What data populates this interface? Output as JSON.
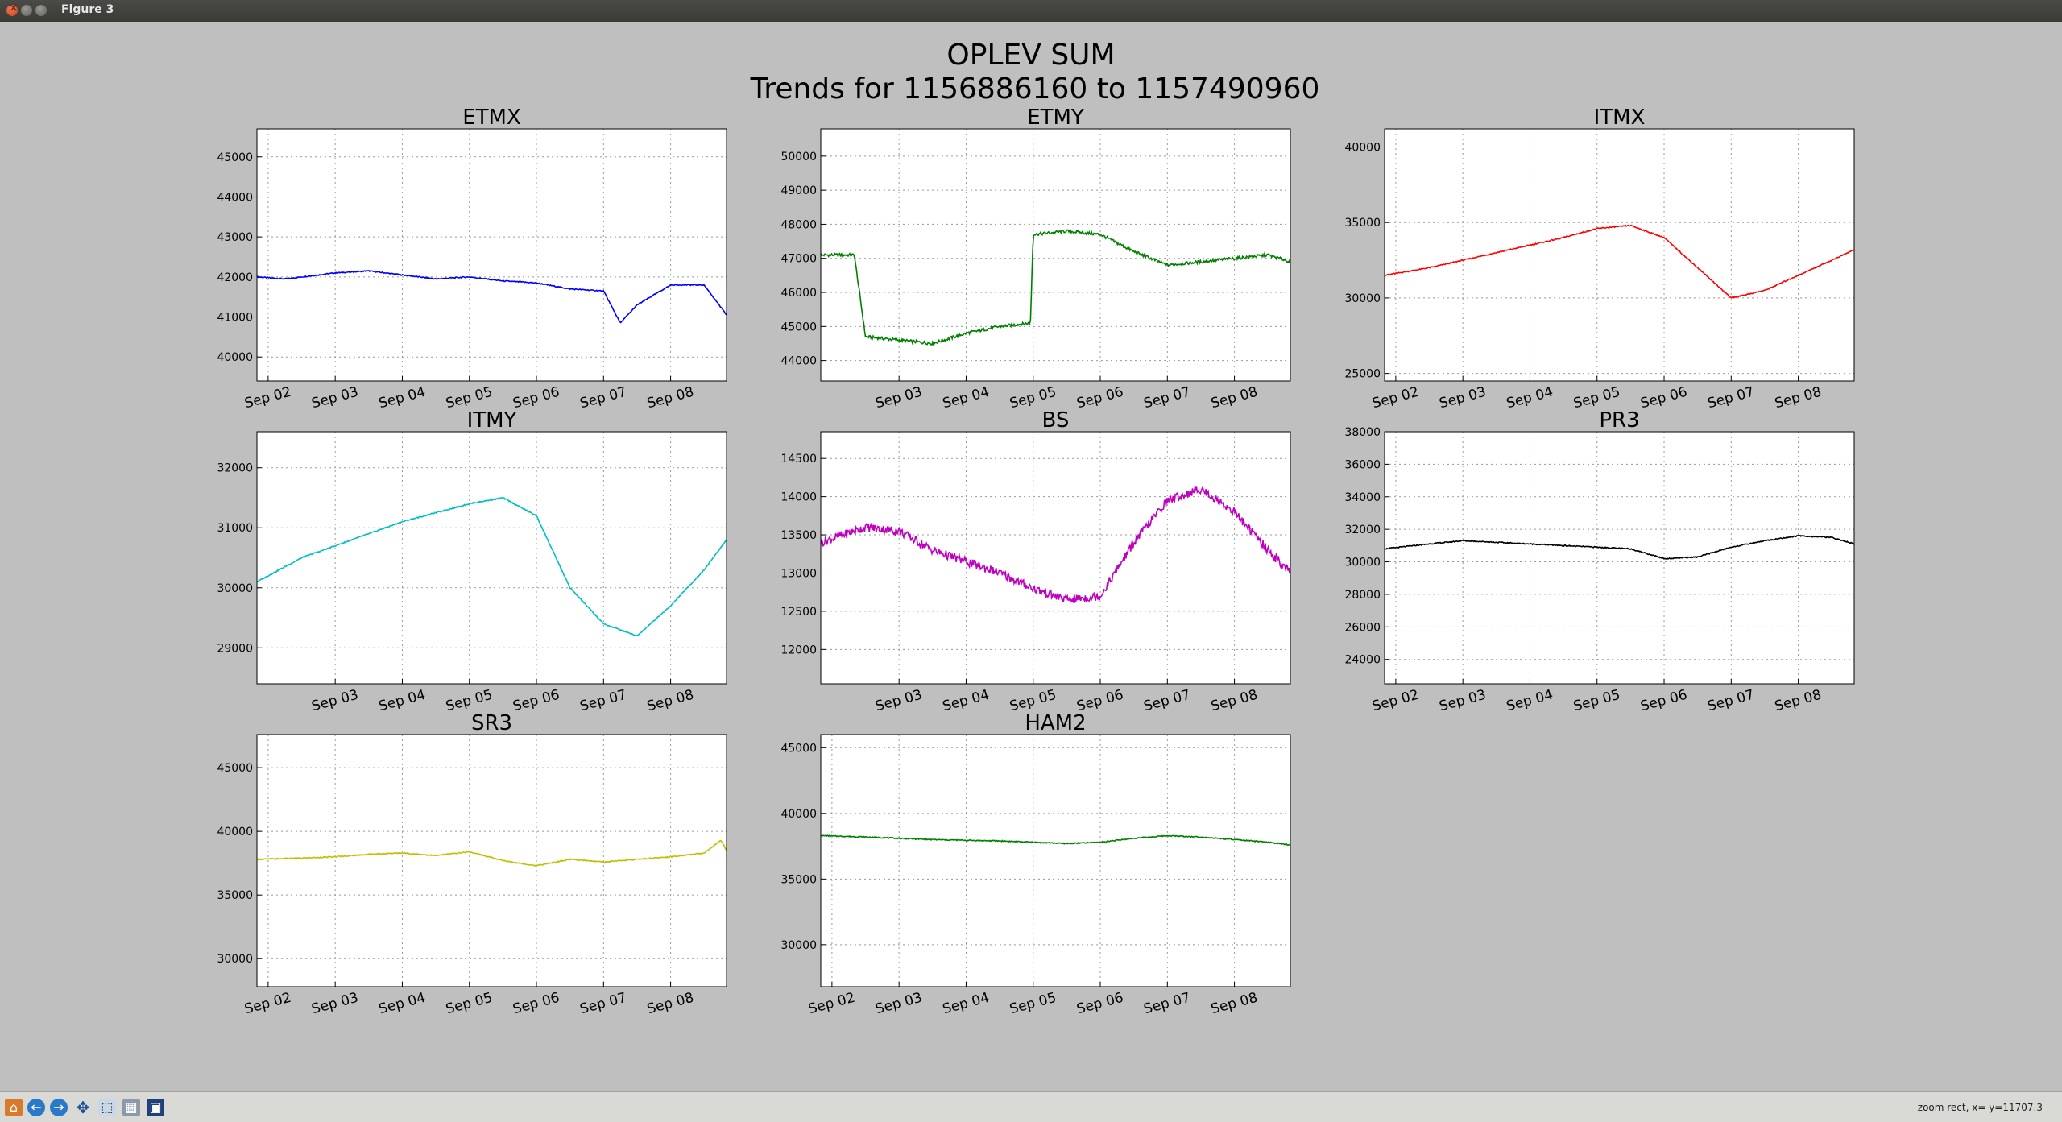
{
  "window": {
    "title": "Figure 3"
  },
  "figure": {
    "suptitle_line1": "OPLEV SUM",
    "suptitle_line2": "Trends for 1156886160 to 1157490960"
  },
  "toolbar": {
    "buttons": [
      "home-icon",
      "back-icon",
      "forward-icon",
      "pan-icon",
      "zoom-icon",
      "configure-subplots-icon",
      "save-icon"
    ],
    "status": "zoom rect, x= y=11707.3"
  },
  "chart_data": [
    {
      "type": "line",
      "title": "ETMX",
      "color": "#0000ff",
      "xlim": [
        "Sep 01 20:00",
        "Sep 08 20:00"
      ],
      "ylim": [
        39400,
        45700
      ],
      "yticks": [
        40000,
        41000,
        42000,
        43000,
        44000,
        45000
      ],
      "xticks": [
        "Sep 02",
        "Sep 03",
        "Sep 04",
        "Sep 05",
        "Sep 06",
        "Sep 07",
        "Sep 08"
      ],
      "grid": true,
      "x": [
        "Sep 01 20:00",
        "Sep 02 06:00",
        "Sep 02 12:00",
        "Sep 03 00:00",
        "Sep 03 12:00",
        "Sep 04 00:00",
        "Sep 04 12:00",
        "Sep 05 00:00",
        "Sep 05 12:00",
        "Sep 06 00:00",
        "Sep 06 12:00",
        "Sep 07 00:00",
        "Sep 07 06:00",
        "Sep 07 12:00",
        "Sep 08 00:00",
        "Sep 08 12:00",
        "Sep 08 20:00"
      ],
      "y": [
        42000,
        41950,
        42000,
        42100,
        42150,
        42050,
        41950,
        42000,
        41900,
        41850,
        41700,
        41650,
        40850,
        41300,
        41800,
        41800,
        41050
      ]
    },
    {
      "type": "line",
      "title": "ETMY",
      "color": "#008000",
      "xlim": [
        "Sep 01 20:00",
        "Sep 08 20:00"
      ],
      "ylim": [
        43400,
        50800
      ],
      "yticks": [
        44000,
        45000,
        46000,
        47000,
        48000,
        49000,
        50000
      ],
      "xticks": [
        "Sep 03",
        "Sep 04",
        "Sep 05",
        "Sep 06",
        "Sep 07",
        "Sep 08"
      ],
      "grid": true,
      "x": [
        "Sep 01 20:00",
        "Sep 02 08:00",
        "Sep 02 12:00",
        "Sep 03 00:00",
        "Sep 03 12:00",
        "Sep 04 00:00",
        "Sep 04 12:00",
        "Sep 04 23:00",
        "Sep 05 00:00",
        "Sep 05 12:00",
        "Sep 06 00:00",
        "Sep 06 12:00",
        "Sep 07 00:00",
        "Sep 07 12:00",
        "Sep 08 00:00",
        "Sep 08 12:00",
        "Sep 08 20:00"
      ],
      "y": [
        47100,
        47100,
        44700,
        44600,
        44500,
        44800,
        45000,
        45100,
        47700,
        47800,
        47700,
        47200,
        46800,
        46900,
        47000,
        47100,
        46900
      ]
    },
    {
      "type": "line",
      "title": "ITMX",
      "color": "#ff0000",
      "xlim": [
        "Sep 01 20:00",
        "Sep 08 20:00"
      ],
      "ylim": [
        24500,
        41200
      ],
      "yticks": [
        25000,
        30000,
        35000,
        40000
      ],
      "xticks": [
        "Sep 02",
        "Sep 03",
        "Sep 04",
        "Sep 05",
        "Sep 06",
        "Sep 07",
        "Sep 08"
      ],
      "grid": true,
      "x": [
        "Sep 01 20:00",
        "Sep 02 12:00",
        "Sep 03 00:00",
        "Sep 03 12:00",
        "Sep 04 00:00",
        "Sep 04 12:00",
        "Sep 05 00:00",
        "Sep 05 12:00",
        "Sep 06 00:00",
        "Sep 06 12:00",
        "Sep 07 00:00",
        "Sep 07 12:00",
        "Sep 08 00:00",
        "Sep 08 12:00",
        "Sep 08 20:00"
      ],
      "y": [
        31500,
        32000,
        32500,
        33000,
        33500,
        34000,
        34600,
        34800,
        34000,
        32000,
        30000,
        30500,
        31500,
        32500,
        33200
      ]
    },
    {
      "type": "line",
      "title": "ITMY",
      "color": "#00bfbf",
      "xlim": [
        "Sep 01 20:00",
        "Sep 08 20:00"
      ],
      "ylim": [
        28400,
        32600
      ],
      "yticks": [
        29000,
        30000,
        31000,
        32000
      ],
      "xticks": [
        "Sep 03",
        "Sep 04",
        "Sep 05",
        "Sep 06",
        "Sep 07",
        "Sep 08"
      ],
      "grid": true,
      "x": [
        "Sep 01 20:00",
        "Sep 02 12:00",
        "Sep 03 00:00",
        "Sep 03 12:00",
        "Sep 04 00:00",
        "Sep 04 12:00",
        "Sep 05 00:00",
        "Sep 05 12:00",
        "Sep 06 00:00",
        "Sep 06 12:00",
        "Sep 07 00:00",
        "Sep 07 12:00",
        "Sep 08 00:00",
        "Sep 08 12:00",
        "Sep 08 20:00"
      ],
      "y": [
        30100,
        30500,
        30700,
        30900,
        31100,
        31250,
        31400,
        31500,
        31200,
        30000,
        29400,
        29200,
        29700,
        30300,
        30800
      ]
    },
    {
      "type": "line",
      "title": "BS",
      "color": "#bf00bf",
      "xlim": [
        "Sep 01 20:00",
        "Sep 08 20:00"
      ],
      "ylim": [
        11550,
        14850
      ],
      "yticks": [
        12000,
        12500,
        13000,
        13500,
        14000,
        14500
      ],
      "xticks": [
        "Sep 03",
        "Sep 04",
        "Sep 05",
        "Sep 06",
        "Sep 07",
        "Sep 08"
      ],
      "grid": true,
      "x": [
        "Sep 01 20:00",
        "Sep 02 12:00",
        "Sep 03 00:00",
        "Sep 03 12:00",
        "Sep 04 00:00",
        "Sep 04 12:00",
        "Sep 05 00:00",
        "Sep 05 12:00",
        "Sep 06 00:00",
        "Sep 06 12:00",
        "Sep 07 00:00",
        "Sep 07 12:00",
        "Sep 08 00:00",
        "Sep 08 12:00",
        "Sep 08 20:00"
      ],
      "y": [
        13400,
        13600,
        13550,
        13300,
        13150,
        13000,
        12800,
        12650,
        12700,
        13400,
        13950,
        14100,
        13800,
        13300,
        13000
      ]
    },
    {
      "type": "line",
      "title": "PR3",
      "color": "#000000",
      "xlim": [
        "Sep 01 20:00",
        "Sep 08 20:00"
      ],
      "ylim": [
        22500,
        38000
      ],
      "yticks": [
        24000,
        26000,
        28000,
        30000,
        32000,
        34000,
        36000,
        38000
      ],
      "xticks": [
        "Sep 02",
        "Sep 03",
        "Sep 04",
        "Sep 05",
        "Sep 06",
        "Sep 07",
        "Sep 08"
      ],
      "grid": true,
      "x": [
        "Sep 01 20:00",
        "Sep 02 12:00",
        "Sep 03 00:00",
        "Sep 03 12:00",
        "Sep 04 00:00",
        "Sep 04 12:00",
        "Sep 05 00:00",
        "Sep 05 12:00",
        "Sep 06 00:00",
        "Sep 06 12:00",
        "Sep 07 00:00",
        "Sep 07 12:00",
        "Sep 08 00:00",
        "Sep 08 12:00",
        "Sep 08 20:00"
      ],
      "y": [
        30800,
        31100,
        31300,
        31200,
        31100,
        31000,
        30900,
        30800,
        30200,
        30300,
        30900,
        31300,
        31600,
        31500,
        31100
      ]
    },
    {
      "type": "line",
      "title": "SR3",
      "color": "#bfbf00",
      "xlim": [
        "Sep 01 20:00",
        "Sep 08 20:00"
      ],
      "ylim": [
        27800,
        47600
      ],
      "yticks": [
        30000,
        35000,
        40000,
        45000
      ],
      "xticks": [
        "Sep 02",
        "Sep 03",
        "Sep 04",
        "Sep 05",
        "Sep 06",
        "Sep 07",
        "Sep 08"
      ],
      "grid": true,
      "x": [
        "Sep 01 20:00",
        "Sep 02 12:00",
        "Sep 03 00:00",
        "Sep 03 12:00",
        "Sep 04 00:00",
        "Sep 04 12:00",
        "Sep 05 00:00",
        "Sep 05 12:00",
        "Sep 06 00:00",
        "Sep 06 12:00",
        "Sep 07 00:00",
        "Sep 07 12:00",
        "Sep 08 00:00",
        "Sep 08 12:00",
        "Sep 08 18:00",
        "Sep 08 20:00"
      ],
      "y": [
        37800,
        37900,
        38000,
        38200,
        38300,
        38100,
        38400,
        37700,
        37300,
        37800,
        37600,
        37800,
        38000,
        38300,
        39300,
        38500
      ]
    },
    {
      "type": "line",
      "title": "HAM2",
      "color": "#008000",
      "xlim": [
        "Sep 01 20:00",
        "Sep 08 20:00"
      ],
      "ylim": [
        26800,
        46000
      ],
      "yticks": [
        30000,
        35000,
        40000,
        45000
      ],
      "xticks": [
        "Sep 02",
        "Sep 03",
        "Sep 04",
        "Sep 05",
        "Sep 06",
        "Sep 07",
        "Sep 08"
      ],
      "grid": true,
      "x": [
        "Sep 01 20:00",
        "Sep 02 12:00",
        "Sep 03 12:00",
        "Sep 04 12:00",
        "Sep 05 12:00",
        "Sep 06 00:00",
        "Sep 06 12:00",
        "Sep 07 00:00",
        "Sep 07 12:00",
        "Sep 08 00:00",
        "Sep 08 12:00",
        "Sep 08 20:00"
      ],
      "y": [
        38300,
        38200,
        38000,
        37900,
        37700,
        37800,
        38100,
        38300,
        38200,
        38000,
        37800,
        37600
      ]
    }
  ]
}
